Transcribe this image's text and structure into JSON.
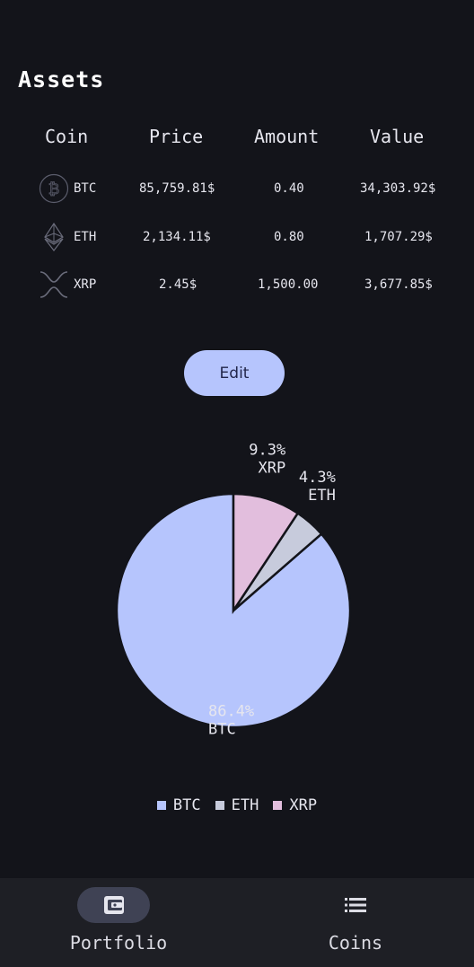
{
  "title": "Assets",
  "table": {
    "headers": [
      "Coin",
      "Price",
      "Amount",
      "Value"
    ],
    "rows": [
      {
        "symbol": "BTC",
        "icon": "bitcoin-icon",
        "price": "85,759.81$",
        "amount": "0.40",
        "value": "34,303.92$"
      },
      {
        "symbol": "ETH",
        "icon": "ethereum-icon",
        "price": "2,134.11$",
        "amount": "0.80",
        "value": "1,707.29$"
      },
      {
        "symbol": "XRP",
        "icon": "xrp-icon",
        "price": "2.45$",
        "amount": "1,500.00",
        "value": "3,677.85$"
      }
    ]
  },
  "edit_label": "Edit",
  "chart_data": {
    "type": "pie",
    "slices": [
      {
        "label": "BTC",
        "value": 86.4,
        "pct_label": "86.4%",
        "color": "#b6c5fd"
      },
      {
        "label": "ETH",
        "value": 4.3,
        "pct_label": "4.3%",
        "color": "#c7cbdc"
      },
      {
        "label": "XRP",
        "value": 9.3,
        "pct_label": "9.3%",
        "color": "#e2bedd"
      }
    ],
    "legend": [
      "BTC",
      "ETH",
      "XRP"
    ],
    "legend_position": "bottom"
  },
  "nav": {
    "items": [
      {
        "label": "Portfolio",
        "icon": "wallet-icon",
        "active": true
      },
      {
        "label": "Coins",
        "icon": "list-icon",
        "active": false
      }
    ]
  }
}
